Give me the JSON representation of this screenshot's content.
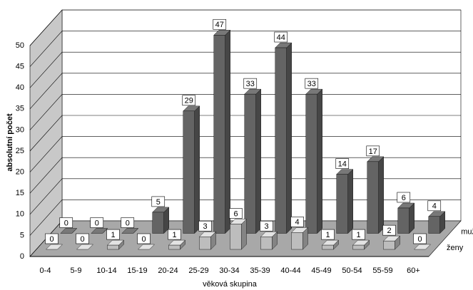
{
  "chart_data": {
    "type": "bar3d",
    "categories": [
      "0-4",
      "5-9",
      "10-14",
      "15-19",
      "20-24",
      "25-29",
      "30-34",
      "35-39",
      "40-44",
      "45-49",
      "50-54",
      "55-59",
      "60+"
    ],
    "series": [
      {
        "name": "ženy",
        "color": "#bdbdbd",
        "values": [
          0,
          0,
          1,
          0,
          1,
          3,
          6,
          3,
          4,
          1,
          1,
          2,
          0
        ]
      },
      {
        "name": "muži",
        "color": "#646464",
        "values": [
          0,
          0,
          0,
          5,
          29,
          47,
          33,
          44,
          33,
          14,
          17,
          6,
          4
        ]
      }
    ],
    "ylim": [
      0,
      50
    ],
    "yticks": [
      0,
      5,
      10,
      15,
      20,
      25,
      30,
      35,
      40,
      45,
      50
    ],
    "grid": true,
    "y_label": "absolutní počet",
    "x_label": "věková skupina"
  }
}
